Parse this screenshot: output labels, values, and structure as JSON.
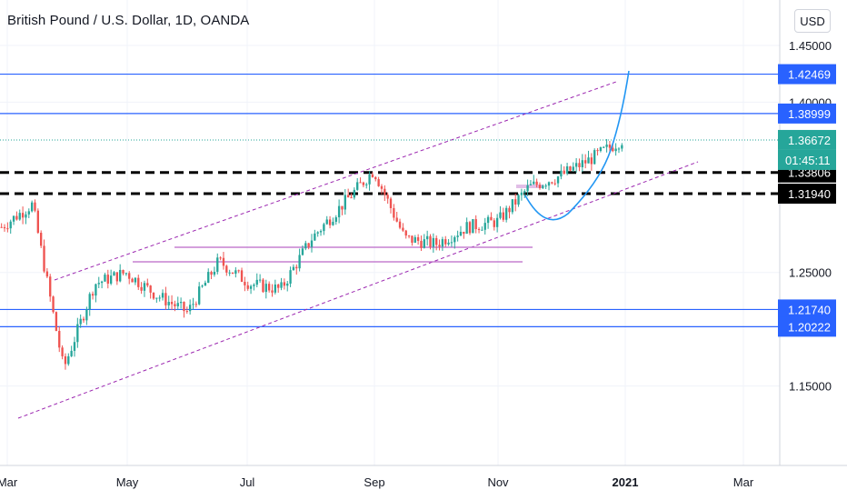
{
  "header": {
    "title": "British Pound / U.S. Dollar, 1D, OANDA",
    "currency_button": "USD"
  },
  "colors": {
    "up": "#26a69a",
    "down": "#ef5350",
    "hline": "#2962ff",
    "hline_label_bg": "#2962ff",
    "dashed": "#000000",
    "channel": "#9c27b0",
    "magenta_line": "#ba68c8",
    "curve": "#2196f3",
    "current_price_bg": "#26a69a",
    "grid": "#f0f3fa"
  },
  "chart_data": {
    "type": "candlestick",
    "title": "British Pound / U.S. Dollar, 1D, OANDA",
    "ylim": [
      1.08,
      1.49
    ],
    "y_ticks": [
      "1.45000",
      "1.40000",
      "1.25000",
      "1.15000"
    ],
    "x_ticks": [
      "Mar",
      "May",
      "Jul",
      "Sep",
      "Nov",
      "2021",
      "Mar"
    ],
    "price_path": [
      {
        "x": "Mar",
        "y": 1.29
      },
      {
        "x": "Mar-mid",
        "y": 1.31
      },
      {
        "x": "Mar-late",
        "y": 1.165
      },
      {
        "x": "Apr-early",
        "y": 1.24
      },
      {
        "x": "Apr-mid",
        "y": 1.25
      },
      {
        "x": "May",
        "y": 1.23
      },
      {
        "x": "May-late",
        "y": 1.215
      },
      {
        "x": "Jun-early",
        "y": 1.26
      },
      {
        "x": "Jun-mid",
        "y": 1.24
      },
      {
        "x": "Jul",
        "y": 1.235
      },
      {
        "x": "Jul-late",
        "y": 1.28
      },
      {
        "x": "Aug",
        "y": 1.31
      },
      {
        "x": "Sep-early",
        "y": 1.34
      },
      {
        "x": "Sep-mid",
        "y": 1.28
      },
      {
        "x": "Sep-late",
        "y": 1.275
      },
      {
        "x": "Oct",
        "y": 1.29
      },
      {
        "x": "Nov-early",
        "y": 1.295
      },
      {
        "x": "Nov-mid",
        "y": 1.325
      },
      {
        "x": "Dec",
        "y": 1.335
      },
      {
        "x": "Dec-mid",
        "y": 1.35
      },
      {
        "x": "2021",
        "y": 1.3667
      }
    ],
    "horizontal_levels": [
      {
        "label": "1.42469",
        "value": 1.42469,
        "style": "solid-blue"
      },
      {
        "label": "1.38999",
        "value": 1.38999,
        "style": "solid-blue"
      },
      {
        "label": "1.33806",
        "value": 1.33806,
        "style": "dashed-black"
      },
      {
        "label": "1.31940",
        "value": 1.3194,
        "style": "dashed-black"
      },
      {
        "label": "1.21740",
        "value": 1.2174,
        "style": "solid-blue"
      },
      {
        "label": "1.20222",
        "value": 1.20222,
        "style": "solid-blue"
      }
    ],
    "current_price": {
      "label": "1.36672",
      "value": 1.36672,
      "countdown": "01:45:11"
    }
  }
}
